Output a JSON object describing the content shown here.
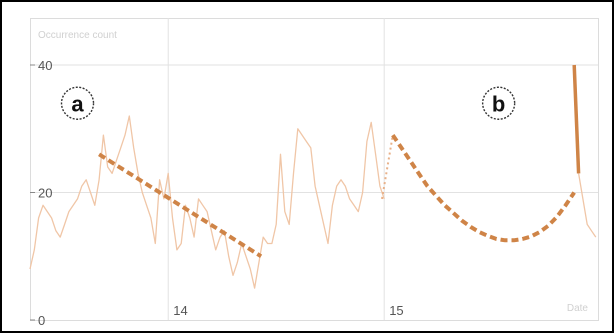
{
  "chart_data": {
    "type": "line",
    "ylabel": "Occurrence count",
    "xlabel": "Date",
    "y_ticks": [
      "40",
      "20",
      "0"
    ],
    "x_ticks": [
      "14",
      "15"
    ],
    "ylim": [
      0,
      40
    ],
    "xlim": [
      13.36,
      15.99
    ],
    "grid": true,
    "annotations": [
      {
        "label": "a",
        "x": 13.58,
        "y": 34
      },
      {
        "label": "b",
        "x": 15.53,
        "y": 34
      }
    ],
    "series": [
      {
        "style": "raw",
        "x": [
          13.36,
          13.38,
          13.4,
          13.42,
          13.44,
          13.46,
          13.48,
          13.5,
          13.52,
          13.54,
          13.56,
          13.58,
          13.6,
          13.62,
          13.64,
          13.66,
          13.68,
          13.7,
          13.72,
          13.74,
          13.76,
          13.78,
          13.8,
          13.82,
          13.84,
          13.86,
          13.88,
          13.9,
          13.92,
          13.94,
          13.96,
          13.98,
          14.0,
          14.02,
          14.04,
          14.06,
          14.08,
          14.1,
          14.12,
          14.14,
          14.16,
          14.18,
          14.2,
          14.22,
          14.24,
          14.26,
          14.28,
          14.3,
          14.32,
          14.34,
          14.36,
          14.38,
          14.4,
          14.42,
          14.44,
          14.46,
          14.48,
          14.5,
          14.52,
          14.54,
          14.56,
          14.58,
          14.6,
          14.62,
          14.64,
          14.66,
          14.68,
          14.7,
          14.72,
          14.74,
          14.76,
          14.78,
          14.8,
          14.82,
          14.84,
          14.86,
          14.88,
          14.9,
          14.92,
          14.94,
          14.96,
          14.98,
          15.0
        ],
        "y": [
          8,
          11,
          16,
          18,
          17,
          16,
          14,
          13,
          15,
          17,
          18,
          19,
          21,
          22,
          20,
          18,
          22,
          29,
          24,
          23,
          25,
          27,
          29,
          32,
          27,
          23,
          20,
          18,
          16,
          12,
          22,
          19,
          23,
          16,
          11,
          12,
          18,
          16,
          13,
          19,
          18,
          17,
          14,
          11,
          13,
          14,
          10,
          7,
          9,
          12,
          10,
          8,
          5,
          9,
          13,
          12,
          12,
          15,
          26,
          17,
          15,
          23,
          30,
          29,
          28,
          27,
          21,
          18,
          15,
          12,
          18,
          21,
          22,
          21,
          19,
          18,
          17,
          20,
          28,
          31,
          26,
          21,
          19
        ]
      },
      {
        "style": "connector",
        "x": [
          14.99,
          15.04
        ],
        "y": [
          19,
          29
        ]
      },
      {
        "style": "trend",
        "x": [
          13.68,
          14.43
        ],
        "y": [
          26,
          10
        ]
      },
      {
        "style": "curve",
        "x": [
          15.04,
          15.08,
          15.12,
          15.16,
          15.2,
          15.24,
          15.28,
          15.32,
          15.36,
          15.4,
          15.44,
          15.48,
          15.52,
          15.56,
          15.6,
          15.64,
          15.68,
          15.72,
          15.76,
          15.8,
          15.84,
          15.88
        ],
        "y": [
          29,
          27,
          25,
          23,
          21,
          19.5,
          18,
          16.8,
          15.6,
          14.6,
          13.8,
          13.2,
          12.7,
          12.5,
          12.5,
          12.7,
          13.1,
          13.8,
          14.8,
          16.2,
          18,
          20
        ]
      },
      {
        "style": "spike",
        "x": [
          15.88,
          15.9
        ],
        "y": [
          40,
          23
        ]
      },
      {
        "style": "tail",
        "x": [
          15.9,
          15.92,
          15.94,
          15.96,
          15.98
        ],
        "y": [
          23,
          19,
          15,
          14,
          13
        ]
      }
    ]
  }
}
